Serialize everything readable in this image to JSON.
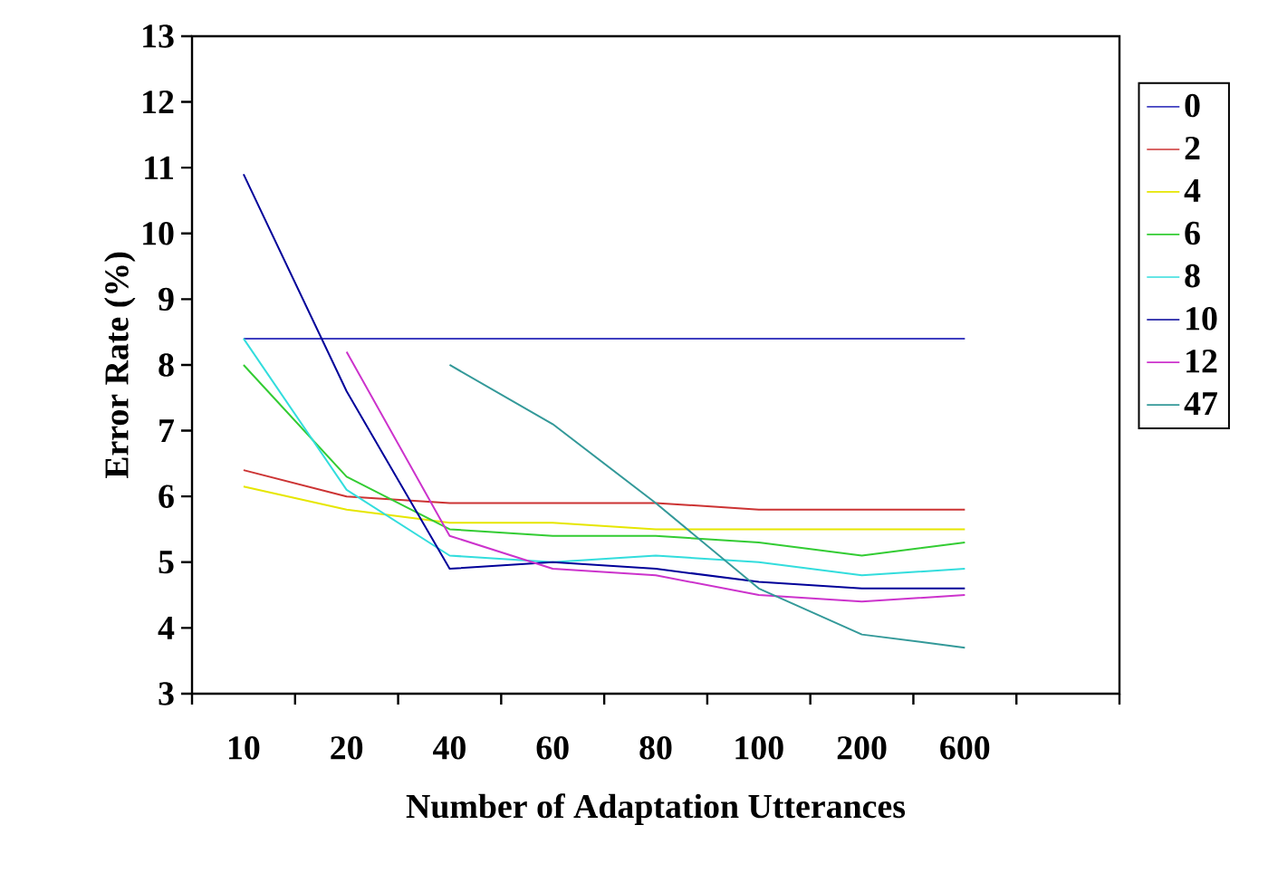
{
  "chart_data": {
    "type": "line",
    "xlabel": "Number of Adaptation Utterances",
    "ylabel": "Error Rate (%)",
    "categories": [
      "10",
      "20",
      "40",
      "60",
      "80",
      "100",
      "200",
      "600"
    ],
    "ylim": [
      3,
      13
    ],
    "yticks": [
      3,
      4,
      5,
      6,
      7,
      8,
      9,
      10,
      11,
      12,
      13
    ],
    "legend": "right",
    "grid": false,
    "series": [
      {
        "name": "0",
        "color": "#4040c0",
        "values": [
          8.4,
          8.4,
          8.4,
          8.4,
          8.4,
          8.4,
          8.4,
          8.4
        ]
      },
      {
        "name": "2",
        "color": "#cc3333",
        "values": [
          6.4,
          6.0,
          5.9,
          5.9,
          5.9,
          5.8,
          5.8,
          5.8
        ]
      },
      {
        "name": "4",
        "color": "#e6e600",
        "values": [
          6.15,
          5.8,
          5.6,
          5.6,
          5.5,
          5.5,
          5.5,
          5.5
        ]
      },
      {
        "name": "6",
        "color": "#33cc33",
        "values": [
          8.0,
          6.3,
          5.5,
          5.4,
          5.4,
          5.3,
          5.1,
          5.3
        ]
      },
      {
        "name": "8",
        "color": "#33dddd",
        "values": [
          8.4,
          6.1,
          5.1,
          5.0,
          5.1,
          5.0,
          4.8,
          4.9
        ]
      },
      {
        "name": "10",
        "color": "#000099",
        "values": [
          10.9,
          7.6,
          4.9,
          5.0,
          4.9,
          4.7,
          4.6,
          4.6
        ]
      },
      {
        "name": "12",
        "color": "#cc33cc",
        "values": [
          null,
          8.2,
          5.4,
          4.9,
          4.8,
          4.5,
          4.4,
          4.5
        ]
      },
      {
        "name": "47",
        "color": "#339999",
        "values": [
          null,
          null,
          8.0,
          7.1,
          5.9,
          4.6,
          3.9,
          3.7
        ]
      }
    ]
  }
}
